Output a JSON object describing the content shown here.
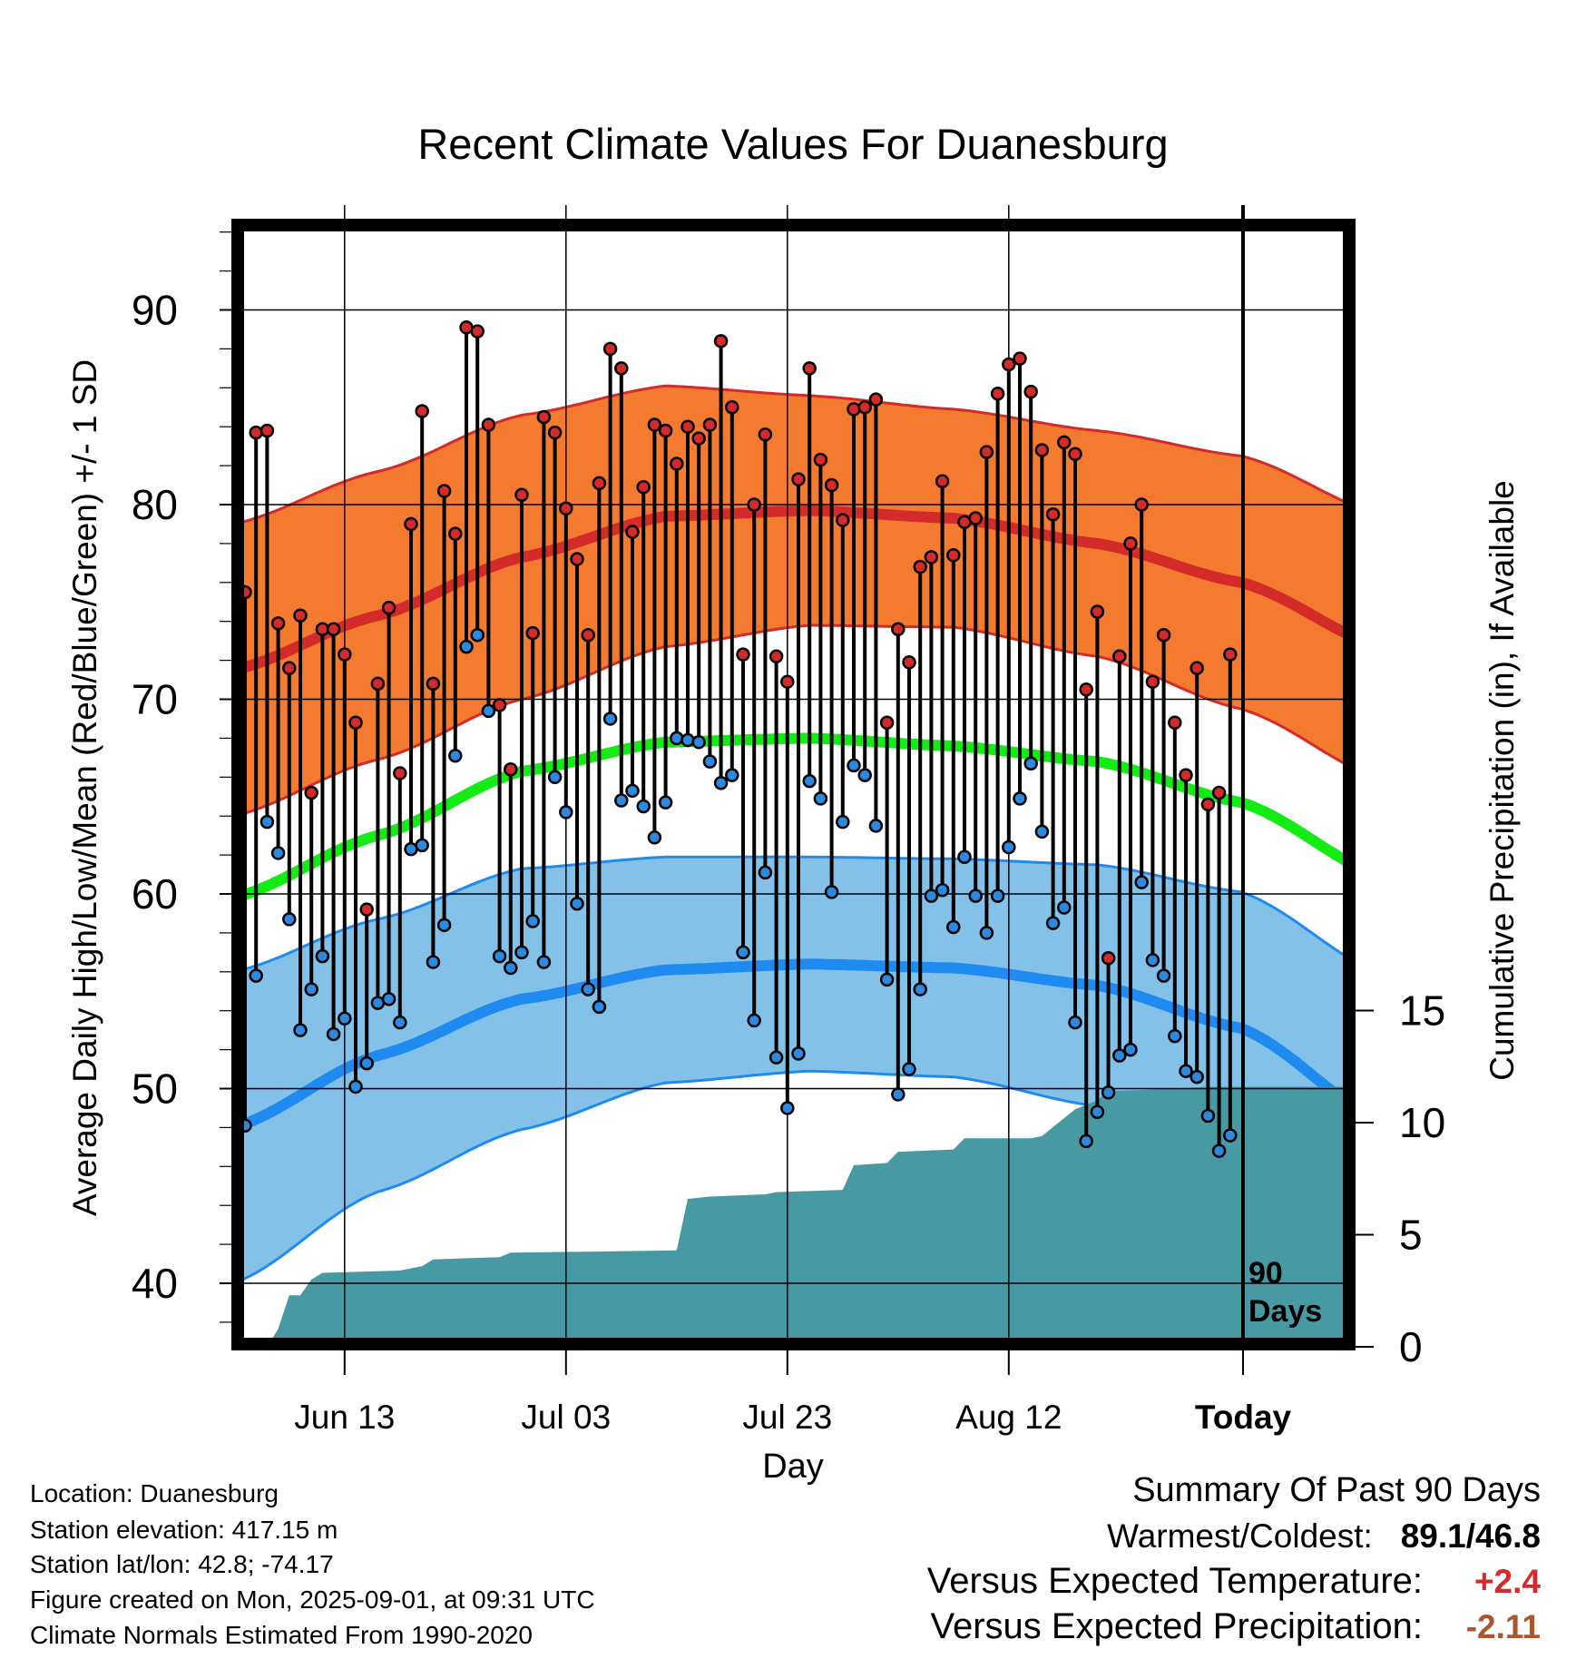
{
  "chart_data": {
    "type": "line",
    "title": "Recent Climate Values For Duanesburg",
    "xlabel": "Day",
    "ylabel": "Average Daily High/Low/Mean (Red/Blue/Green) +/- 1 SD",
    "ylabel_right": "Cumulative Precipitation (in), If Available",
    "x_tick_labels": [
      "Jun 13",
      "Jul 03",
      "Jul 23",
      "Aug 12",
      "Today"
    ],
    "y_ticks": [
      40,
      50,
      60,
      70,
      80,
      90
    ],
    "y_ticks_right": [
      0,
      5,
      10,
      15
    ],
    "ylim": [
      37,
      95
    ],
    "ylim_right": [
      0,
      45
    ],
    "x_day_range": [
      -1,
      10
    ],
    "window_label": [
      "90",
      "Days"
    ],
    "normals": {
      "high_mean": [
        71.5,
        74.3,
        77.3,
        79.4,
        79.7,
        79.3,
        78.0,
        76.0,
        72.6
      ],
      "high_sd": [
        7.5,
        7.4,
        7.3,
        6.7,
        5.9,
        5.6,
        5.8,
        6.5,
        6.8
      ],
      "mean_mean": [
        59.8,
        63.0,
        66.3,
        67.8,
        68.0,
        67.6,
        66.8,
        64.7,
        60.8
      ],
      "low_mean": [
        48.0,
        51.7,
        54.6,
        56.1,
        56.4,
        56.2,
        55.3,
        53.1,
        48.2
      ],
      "low_sd": [
        8.0,
        7.0,
        6.7,
        5.8,
        5.5,
        5.6,
        6.2,
        7.0,
        7.6
      ]
    },
    "daily_high": [
      75.5,
      83.7,
      83.8,
      73.9,
      71.6,
      74.3,
      65.2,
      73.6,
      73.6,
      72.3,
      68.8,
      59.2,
      70.8,
      74.7,
      66.2,
      79.0,
      84.8,
      70.8,
      80.7,
      78.5,
      89.1,
      88.9,
      84.1,
      69.7,
      66.4,
      80.5,
      73.4,
      84.5,
      83.7,
      79.8,
      77.2,
      73.3,
      81.1,
      88.0,
      87.0,
      78.6,
      80.9,
      84.1,
      83.8,
      82.1,
      84.0,
      83.4,
      84.1,
      88.4,
      85.0,
      72.3,
      80.0,
      83.6,
      72.2,
      70.9,
      81.3,
      87.0,
      82.3,
      81.0,
      79.2,
      84.9,
      85.0,
      85.4,
      68.8,
      73.6,
      71.9,
      76.8,
      77.3,
      81.2,
      77.4,
      79.1,
      79.3,
      82.7,
      85.7,
      87.2,
      87.5,
      85.8,
      82.8,
      79.5,
      83.2,
      82.6,
      70.5,
      74.5,
      56.7,
      72.2,
      78.0,
      80.0,
      70.9,
      73.3,
      68.8,
      66.1,
      71.6,
      64.6,
      65.2,
      72.3
    ],
    "daily_low": [
      48.1,
      55.8,
      63.7,
      62.1,
      58.7,
      53.0,
      55.1,
      56.8,
      52.8,
      53.6,
      50.1,
      51.3,
      54.4,
      54.6,
      53.4,
      62.3,
      62.5,
      56.5,
      58.4,
      67.1,
      72.7,
      73.3,
      69.4,
      56.8,
      56.2,
      57.0,
      58.6,
      56.5,
      66.0,
      64.2,
      59.5,
      55.1,
      54.2,
      69.0,
      64.8,
      65.3,
      64.5,
      62.9,
      64.7,
      68.0,
      67.9,
      67.8,
      66.8,
      65.7,
      66.1,
      57.0,
      53.5,
      61.1,
      51.6,
      49.0,
      51.8,
      65.8,
      64.9,
      60.1,
      63.7,
      66.6,
      66.1,
      63.5,
      55.6,
      49.7,
      51.0,
      55.1,
      59.9,
      60.2,
      58.3,
      61.9,
      59.9,
      58.0,
      59.9,
      62.4,
      64.9,
      66.7,
      63.2,
      58.5,
      59.3,
      53.4,
      47.3,
      48.8,
      49.8,
      51.7,
      52.0,
      60.6,
      56.6,
      55.8,
      52.7,
      50.9,
      50.6,
      48.6,
      46.8,
      47.6
    ],
    "cumulative_precip": [
      [
        0,
        0
      ],
      [
        2,
        0
      ],
      [
        3,
        0.8
      ],
      [
        4,
        2.3
      ],
      [
        5,
        2.3
      ],
      [
        6,
        3.0
      ],
      [
        7,
        3.3
      ],
      [
        14,
        3.4
      ],
      [
        16,
        3.6
      ],
      [
        17,
        3.9
      ],
      [
        23,
        4.0
      ],
      [
        24,
        4.2
      ],
      [
        39,
        4.3
      ],
      [
        40,
        6.6
      ],
      [
        42,
        6.7
      ],
      [
        47,
        6.8
      ],
      [
        48,
        6.9
      ],
      [
        54,
        7.0
      ],
      [
        55,
        8.1
      ],
      [
        58,
        8.2
      ],
      [
        59,
        8.7
      ],
      [
        64,
        8.8
      ],
      [
        65,
        9.3
      ],
      [
        71,
        9.3
      ],
      [
        72,
        9.4
      ],
      [
        73,
        9.8
      ],
      [
        75,
        10.6
      ],
      [
        77,
        11.0
      ],
      [
        78,
        11.4
      ],
      [
        83,
        11.5
      ],
      [
        87,
        11.6
      ],
      [
        88,
        11.6
      ],
      [
        89,
        11.6
      ]
    ],
    "grid": true
  },
  "info": {
    "location": "Location: Duanesburg",
    "elevation": "Station elevation: 417.15 m",
    "latlon": "Station lat/lon: 42.8; -74.17",
    "created": "Figure created on Mon, 2025-09-01, at 09:31 UTC",
    "normals": "Climate Normals Estimated From 1990-2020"
  },
  "summary": {
    "heading": "Summary Of Past 90 Days",
    "warm_cold_label": "Warmest/Coldest:",
    "warmest": "89.1",
    "slash": "/",
    "coldest": "46.8",
    "temp_label": "Versus Expected Temperature:",
    "temp_value": "+2.4",
    "temp_color": "#d12b2b",
    "precip_label": "Versus Expected Precipitation:",
    "precip_value": "-2.11",
    "precip_color": "#a8572e"
  },
  "colors": {
    "high_band": "#f47a30",
    "high_line": "#d42a2a",
    "low_band": "#84c1e8",
    "low_line": "#1f8bf0",
    "mean_line": "#14ea14",
    "precip_fill": "#479aa4",
    "high_dot": "#d42a2a",
    "low_dot": "#2b8ae0"
  }
}
